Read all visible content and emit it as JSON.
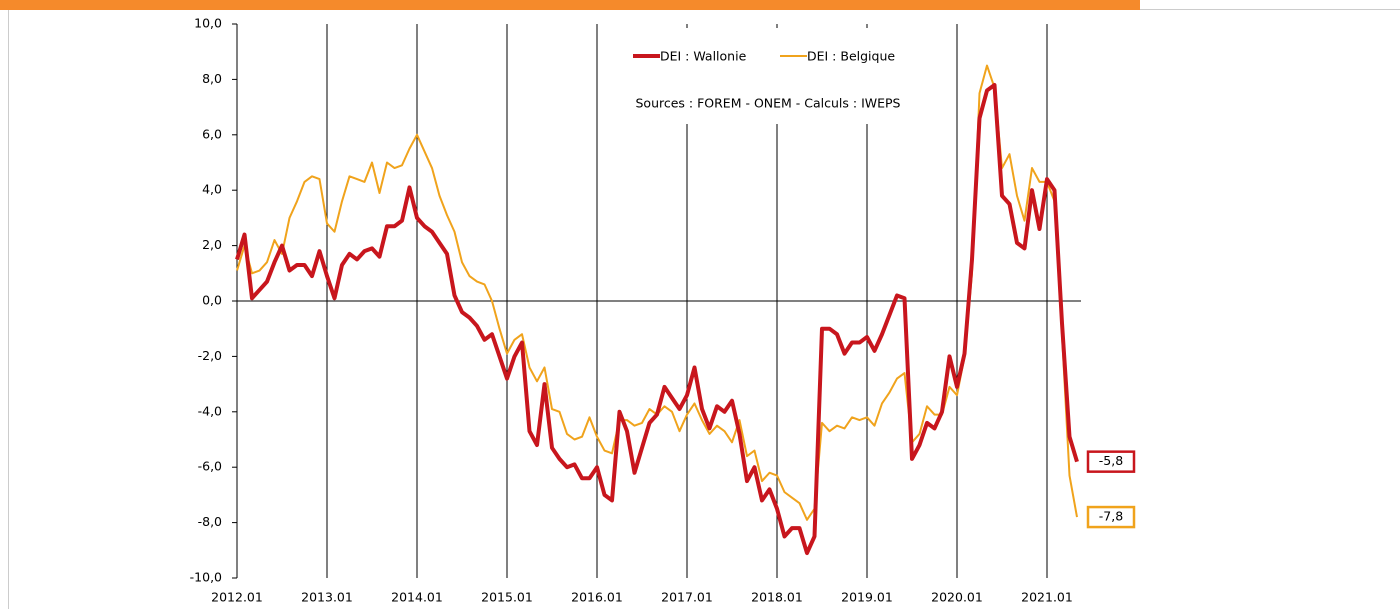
{
  "chart_data": {
    "type": "line",
    "categories": [
      "2012.01",
      null,
      null,
      null,
      null,
      null,
      null,
      null,
      null,
      null,
      null,
      null,
      "2013.01",
      null,
      null,
      null,
      null,
      null,
      null,
      null,
      null,
      null,
      null,
      null,
      "2014.01",
      null,
      null,
      null,
      null,
      null,
      null,
      null,
      null,
      null,
      null,
      null,
      "2015.01",
      null,
      null,
      null,
      null,
      null,
      null,
      null,
      null,
      null,
      null,
      null,
      "2016.01",
      null,
      null,
      null,
      null,
      null,
      null,
      null,
      null,
      null,
      null,
      null,
      "2017.01",
      null,
      null,
      null,
      null,
      null,
      null,
      null,
      null,
      null,
      null,
      null,
      "2018.01",
      null,
      null,
      null,
      null,
      null,
      null,
      null,
      null,
      null,
      null,
      null,
      "2019.01",
      null,
      null,
      null,
      null,
      null,
      null,
      null,
      null,
      null,
      null,
      null,
      "2020.01",
      null,
      null,
      null,
      null,
      null,
      null,
      null,
      null,
      null,
      null,
      null,
      "2021.01",
      null,
      null,
      null,
      null
    ],
    "series": [
      {
        "name": "DEI : Wallonie",
        "color": "#c8161d",
        "width": 4,
        "last_label": "-5,8",
        "values": [
          1.5,
          2.4,
          0.1,
          0.4,
          0.7,
          1.4,
          2.0,
          1.1,
          1.3,
          1.3,
          0.9,
          1.8,
          0.9,
          0.1,
          1.3,
          1.7,
          1.5,
          1.8,
          1.9,
          1.6,
          2.7,
          2.7,
          2.9,
          4.1,
          3.0,
          2.7,
          2.5,
          2.1,
          1.7,
          0.2,
          -0.4,
          -0.6,
          -0.9,
          -1.4,
          -1.2,
          -2.0,
          -2.8,
          -2.0,
          -1.5,
          -4.7,
          -5.2,
          -3.0,
          -5.3,
          -5.7,
          -6.0,
          -5.9,
          -6.4,
          -6.4,
          -6.0,
          -7.0,
          -7.2,
          -4.0,
          -4.7,
          -6.2,
          -5.3,
          -4.4,
          -4.1,
          -3.1,
          -3.5,
          -3.9,
          -3.4,
          -2.4,
          -3.9,
          -4.6,
          -3.8,
          -4.0,
          -3.6,
          -4.8,
          -6.5,
          -6.0,
          -7.2,
          -6.8,
          -7.5,
          -8.5,
          -8.2,
          -8.2,
          -9.1,
          -8.5,
          -1.0,
          -1.0,
          -1.2,
          -1.9,
          -1.5,
          -1.5,
          -1.3,
          -1.8,
          -1.2,
          -0.5,
          0.2,
          0.1,
          -5.7,
          -5.2,
          -4.4,
          -4.6,
          -4.0,
          -2.0,
          -3.1,
          -1.9,
          1.5,
          6.6,
          7.6,
          7.8,
          3.8,
          3.5,
          2.1,
          1.9,
          4.0,
          2.6,
          4.4,
          4.0,
          -0.8,
          -4.9,
          -5.8
        ]
      },
      {
        "name": "DEI : Belgique",
        "color": "#f0a31c",
        "width": 2,
        "last_label": "-7,8",
        "values": [
          1.1,
          2.0,
          1.0,
          1.1,
          1.4,
          2.2,
          1.7,
          3.0,
          3.6,
          4.3,
          4.5,
          4.4,
          2.8,
          2.5,
          3.6,
          4.5,
          4.4,
          4.3,
          5.0,
          3.9,
          5.0,
          4.8,
          4.9,
          5.5,
          6.0,
          5.4,
          4.8,
          3.8,
          3.1,
          2.5,
          1.4,
          0.9,
          0.7,
          0.6,
          0.0,
          -1.0,
          -1.9,
          -1.4,
          -1.2,
          -2.4,
          -2.9,
          -2.4,
          -3.9,
          -4.0,
          -4.8,
          -5.0,
          -4.9,
          -4.2,
          -4.9,
          -5.4,
          -5.5,
          -4.3,
          -4.3,
          -4.5,
          -4.4,
          -3.9,
          -4.1,
          -3.8,
          -4.0,
          -4.7,
          -4.1,
          -3.7,
          -4.3,
          -4.8,
          -4.5,
          -4.7,
          -5.1,
          -4.3,
          -5.6,
          -5.4,
          -6.5,
          -6.2,
          -6.3,
          -6.9,
          -7.1,
          -7.3,
          -7.9,
          -7.5,
          -4.4,
          -4.7,
          -4.5,
          -4.6,
          -4.2,
          -4.3,
          -4.2,
          -4.5,
          -3.7,
          -3.3,
          -2.8,
          -2.6,
          -5.1,
          -4.8,
          -3.8,
          -4.1,
          -4.1,
          -3.1,
          -3.4,
          -2.0,
          1.0,
          7.5,
          8.5,
          7.7,
          4.8,
          5.3,
          3.8,
          2.9,
          4.8,
          4.3,
          4.3,
          3.6,
          -1.2,
          -6.3,
          -7.8
        ]
      }
    ],
    "annotation": "Sources : FOREM - ONEM - Calculs : IWEPS",
    "ylim": [
      -10,
      10
    ],
    "yticks": [
      {
        "value": -10,
        "label": "-10,0"
      },
      {
        "value": -8,
        "label": "-8,0"
      },
      {
        "value": -6,
        "label": "-6,0"
      },
      {
        "value": -4,
        "label": "-4,0"
      },
      {
        "value": -2,
        "label": "-2,0"
      },
      {
        "value": 0,
        "label": "0,0"
      },
      {
        "value": 2,
        "label": "2,0"
      },
      {
        "value": 4,
        "label": "4,0"
      },
      {
        "value": 6,
        "label": "6,0"
      },
      {
        "value": 8,
        "label": "8,0"
      },
      {
        "value": 10,
        "label": "10,0"
      }
    ],
    "grid": true
  }
}
